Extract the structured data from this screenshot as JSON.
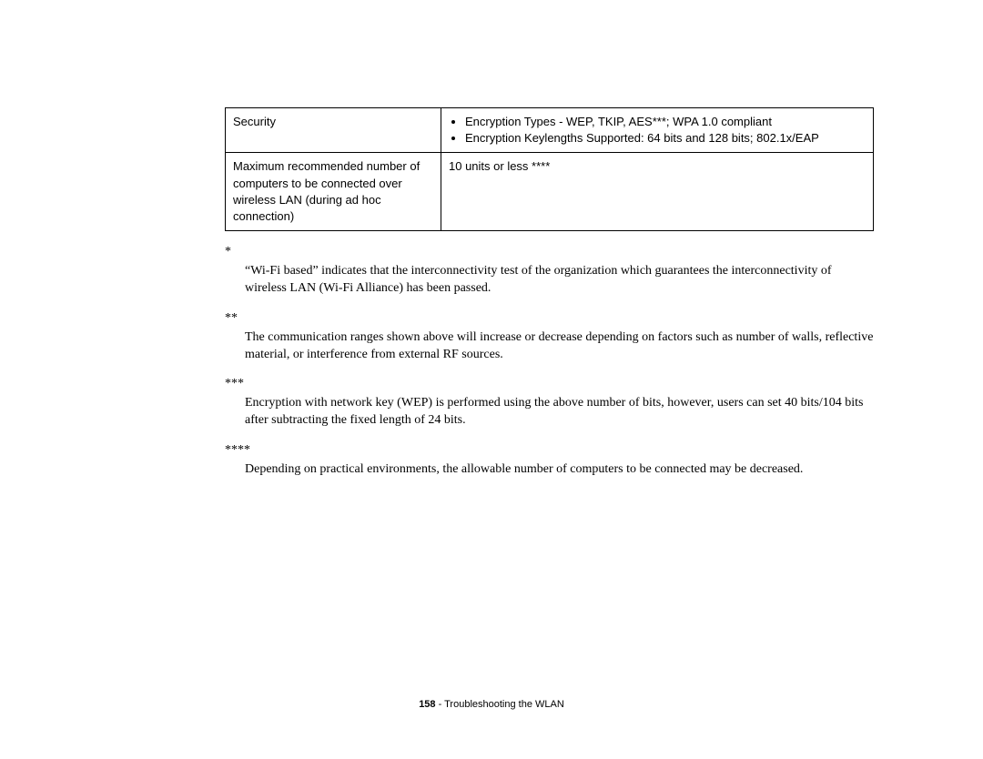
{
  "table": {
    "rows": [
      {
        "label": "Security",
        "bullets": [
          "Encryption Types - WEP, TKIP, AES***; WPA 1.0 compliant",
          "Encryption Keylengths Supported: 64 bits and 128 bits; 802.1x/EAP"
        ]
      },
      {
        "label": "Maximum recommended number of computers to be connected over wireless LAN (during ad hoc connection)",
        "value": "10 units or less ****"
      }
    ]
  },
  "footnotes": [
    {
      "mark": "*",
      "text": "“Wi-Fi based” indicates that the interconnectivity test of the organization which guarantees the interconnectivity of wireless LAN (Wi-Fi Alliance) has been passed."
    },
    {
      "mark": "**",
      "text": "The communication ranges shown above will increase or decrease depending on factors such as number of walls, reflective material, or interference from external RF sources."
    },
    {
      "mark": "***",
      "text": "Encryption with network key (WEP) is performed using the above number of bits, however, users can set 40 bits/104 bits after subtracting the fixed length of 24 bits."
    },
    {
      "mark": "****",
      "text": "Depending on practical environments, the allowable number of computers to be connected may be decreased."
    }
  ],
  "footer": {
    "page": "158",
    "sep": " - ",
    "title": "Troubleshooting the WLAN"
  }
}
